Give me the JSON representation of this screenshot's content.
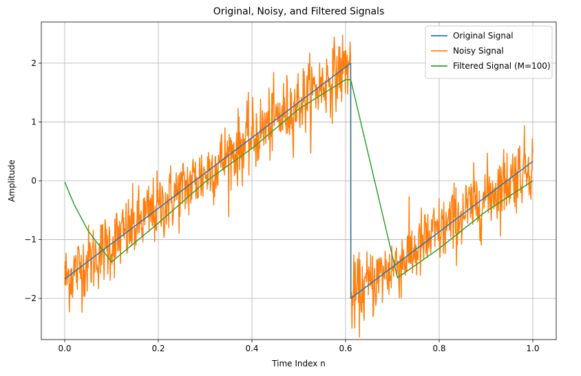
{
  "chart_data": {
    "type": "line",
    "title": "Original, Noisy, and Filtered Signals",
    "xlabel": "Time Index n",
    "ylabel": "Amplitude",
    "xlim": [
      -0.05,
      1.05
    ],
    "ylim": [
      -2.7,
      2.7
    ],
    "xticks": [
      0.0,
      0.2,
      0.4,
      0.6,
      0.8,
      1.0
    ],
    "xtick_labels": [
      "0.0",
      "0.2",
      "0.4",
      "0.6",
      "0.8",
      "1.0"
    ],
    "yticks": [
      -2,
      -1,
      0,
      1,
      2
    ],
    "ytick_labels": [
      "−2",
      "−1",
      "0",
      "1",
      "2"
    ],
    "grid": true,
    "legend_position": "top-right",
    "series": [
      {
        "name": "Original Signal",
        "color": "#1f77b4",
        "x": [
          0.0,
          0.611,
          0.6111,
          1.0
        ],
        "y": [
          -1.67,
          2.0,
          -2.0,
          0.33
        ]
      },
      {
        "name": "Noisy Signal",
        "color": "#ff7f0e",
        "x": [
          0.0,
          0.611,
          0.6111,
          1.0
        ],
        "y": [
          -1.67,
          2.0,
          -2.0,
          0.33
        ],
        "noise_amplitude": 0.3
      },
      {
        "name": "Filtered Signal (M=100)",
        "color": "#2ca02c",
        "x": [
          0.0,
          0.02,
          0.05,
          0.1,
          0.2,
          0.3,
          0.4,
          0.5,
          0.6,
          0.611,
          0.7,
          0.711,
          0.8,
          0.9,
          1.0
        ],
        "y": [
          -0.02,
          -0.4,
          -0.85,
          -1.38,
          -0.72,
          -0.02,
          0.55,
          1.22,
          1.72,
          1.72,
          -1.28,
          -1.65,
          -1.15,
          -0.52,
          0.0
        ]
      }
    ]
  }
}
